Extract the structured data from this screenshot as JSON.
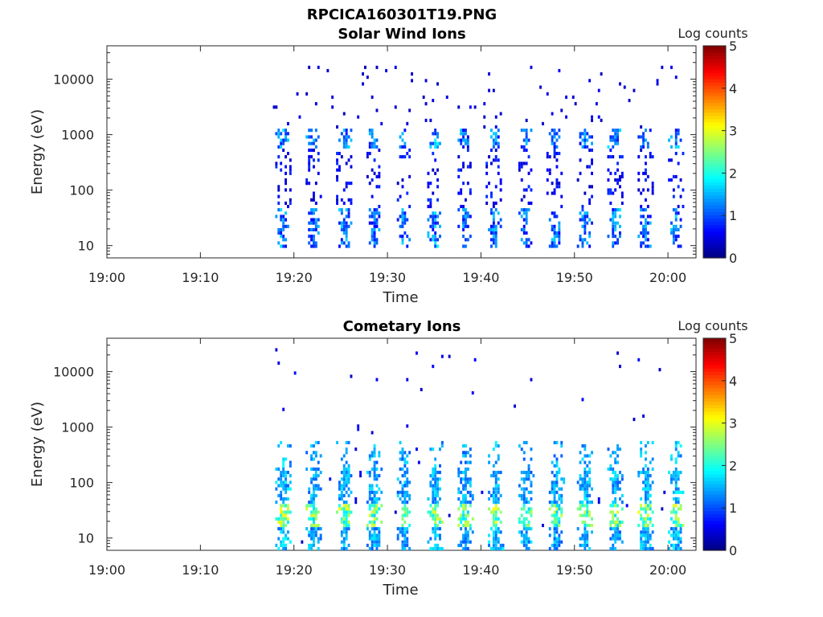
{
  "figure": {
    "title": "RPCICA160301T19.PNG",
    "colors": {
      "axis": "#262626",
      "background": "#ffffff"
    }
  },
  "chart_data": [
    {
      "type": "heatmap",
      "title": "Solar Wind Ions",
      "xlabel": "Time",
      "ylabel": "Energy (eV)",
      "colorbar_label": "Log counts",
      "colorbar_range": [
        0,
        5
      ],
      "colorbar_ticks": [
        "0",
        "1",
        "2",
        "3",
        "4",
        "5"
      ],
      "colormap": "jet",
      "yscale": "log",
      "ylim": [
        6,
        40000
      ],
      "y_ticks": [
        {
          "value": 10,
          "label": "10"
        },
        {
          "value": 100,
          "label": "100"
        },
        {
          "value": 1000,
          "label": "1000"
        },
        {
          "value": 10000,
          "label": "10000"
        }
      ],
      "xlim": [
        "19:00",
        "20:03"
      ],
      "x_ticks": [
        "19:00",
        "19:10",
        "19:20",
        "19:30",
        "19:40",
        "19:50",
        "20:00"
      ],
      "data_start": "19:17",
      "data_end": "20:02",
      "bursts": [
        {
          "time": "19:18.7",
          "peak_log_counts": 1.8
        },
        {
          "time": "19:22.0",
          "peak_log_counts": 1.6
        },
        {
          "time": "19:25.3",
          "peak_log_counts": 1.7
        },
        {
          "time": "19:28.4",
          "peak_log_counts": 1.6
        },
        {
          "time": "19:31.6",
          "peak_log_counts": 1.7
        },
        {
          "time": "19:34.9",
          "peak_log_counts": 1.9
        },
        {
          "time": "19:38.1",
          "peak_log_counts": 1.6
        },
        {
          "time": "19:41.3",
          "peak_log_counts": 1.7
        },
        {
          "time": "19:44.6",
          "peak_log_counts": 1.6
        },
        {
          "time": "19:47.8",
          "peak_log_counts": 1.7
        },
        {
          "time": "19:51.0",
          "peak_log_counts": 1.6
        },
        {
          "time": "19:54.2",
          "peak_log_counts": 1.8
        },
        {
          "time": "19:57.5",
          "peak_log_counts": 1.7
        },
        {
          "time": "20:00.7",
          "peak_log_counts": 1.8
        }
      ]
    },
    {
      "type": "heatmap",
      "title": "Cometary Ions",
      "xlabel": "Time",
      "ylabel": "Energy (eV)",
      "colorbar_label": "Log counts",
      "colorbar_range": [
        0,
        5
      ],
      "colorbar_ticks": [
        "0",
        "1",
        "2",
        "3",
        "4",
        "5"
      ],
      "colormap": "jet",
      "yscale": "log",
      "ylim": [
        6,
        40000
      ],
      "y_ticks": [
        {
          "value": 10,
          "label": "10"
        },
        {
          "value": 100,
          "label": "100"
        },
        {
          "value": 1000,
          "label": "1000"
        },
        {
          "value": 10000,
          "label": "10000"
        }
      ],
      "xlim": [
        "19:00",
        "20:03"
      ],
      "x_ticks": [
        "19:00",
        "19:10",
        "19:20",
        "19:30",
        "19:40",
        "19:50",
        "20:00"
      ],
      "data_start": "19:18",
      "data_end": "20:02",
      "bursts": [
        {
          "time": "19:18.8",
          "peak_log_counts": 2.9
        },
        {
          "time": "19:22.0",
          "peak_log_counts": 2.7
        },
        {
          "time": "19:25.3",
          "peak_log_counts": 2.8
        },
        {
          "time": "19:28.5",
          "peak_log_counts": 2.7
        },
        {
          "time": "19:31.7",
          "peak_log_counts": 2.6
        },
        {
          "time": "19:35.0",
          "peak_log_counts": 2.8
        },
        {
          "time": "19:38.2",
          "peak_log_counts": 2.6
        },
        {
          "time": "19:41.5",
          "peak_log_counts": 2.9
        },
        {
          "time": "19:44.7",
          "peak_log_counts": 2.7
        },
        {
          "time": "19:47.9",
          "peak_log_counts": 2.6
        },
        {
          "time": "19:51.1",
          "peak_log_counts": 2.8
        },
        {
          "time": "19:54.3",
          "peak_log_counts": 2.7
        },
        {
          "time": "19:57.6",
          "peak_log_counts": 2.8
        },
        {
          "time": "20:00.8",
          "peak_log_counts": 2.9
        }
      ]
    }
  ]
}
